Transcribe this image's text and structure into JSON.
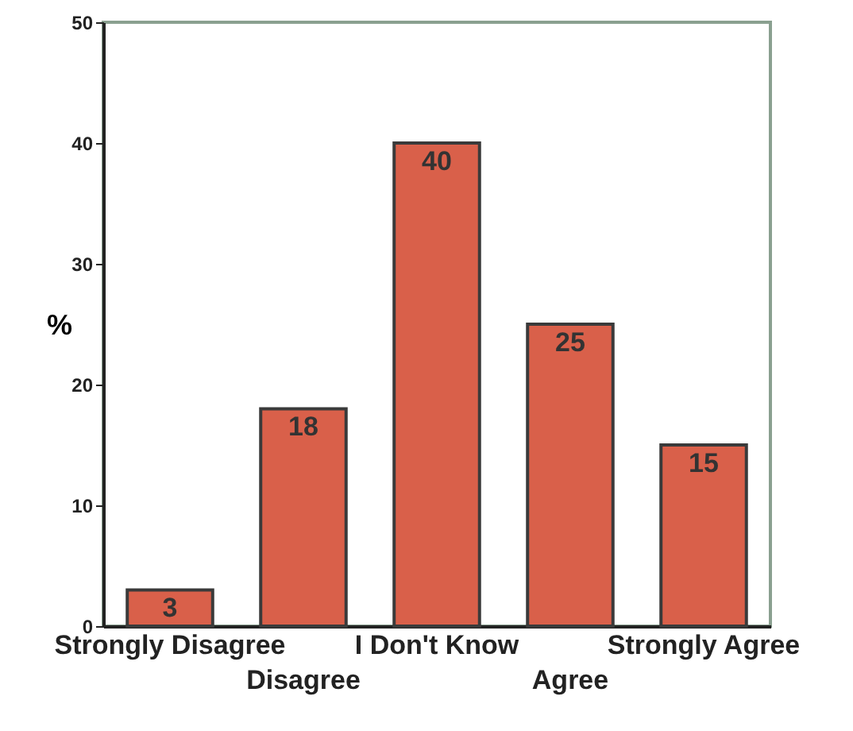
{
  "chart_data": {
    "type": "bar",
    "ylabel": "%",
    "categories": [
      "Strongly Disagree",
      "Disagree",
      "I Don't Know",
      "Agree",
      "Strongly Agree"
    ],
    "values": [
      3,
      18,
      40,
      25,
      15
    ],
    "color": "#d9604a",
    "ylim": [
      0,
      50
    ],
    "yticks": [
      0,
      10,
      20,
      30,
      40,
      50
    ],
    "grid": false,
    "data_labels": true
  }
}
